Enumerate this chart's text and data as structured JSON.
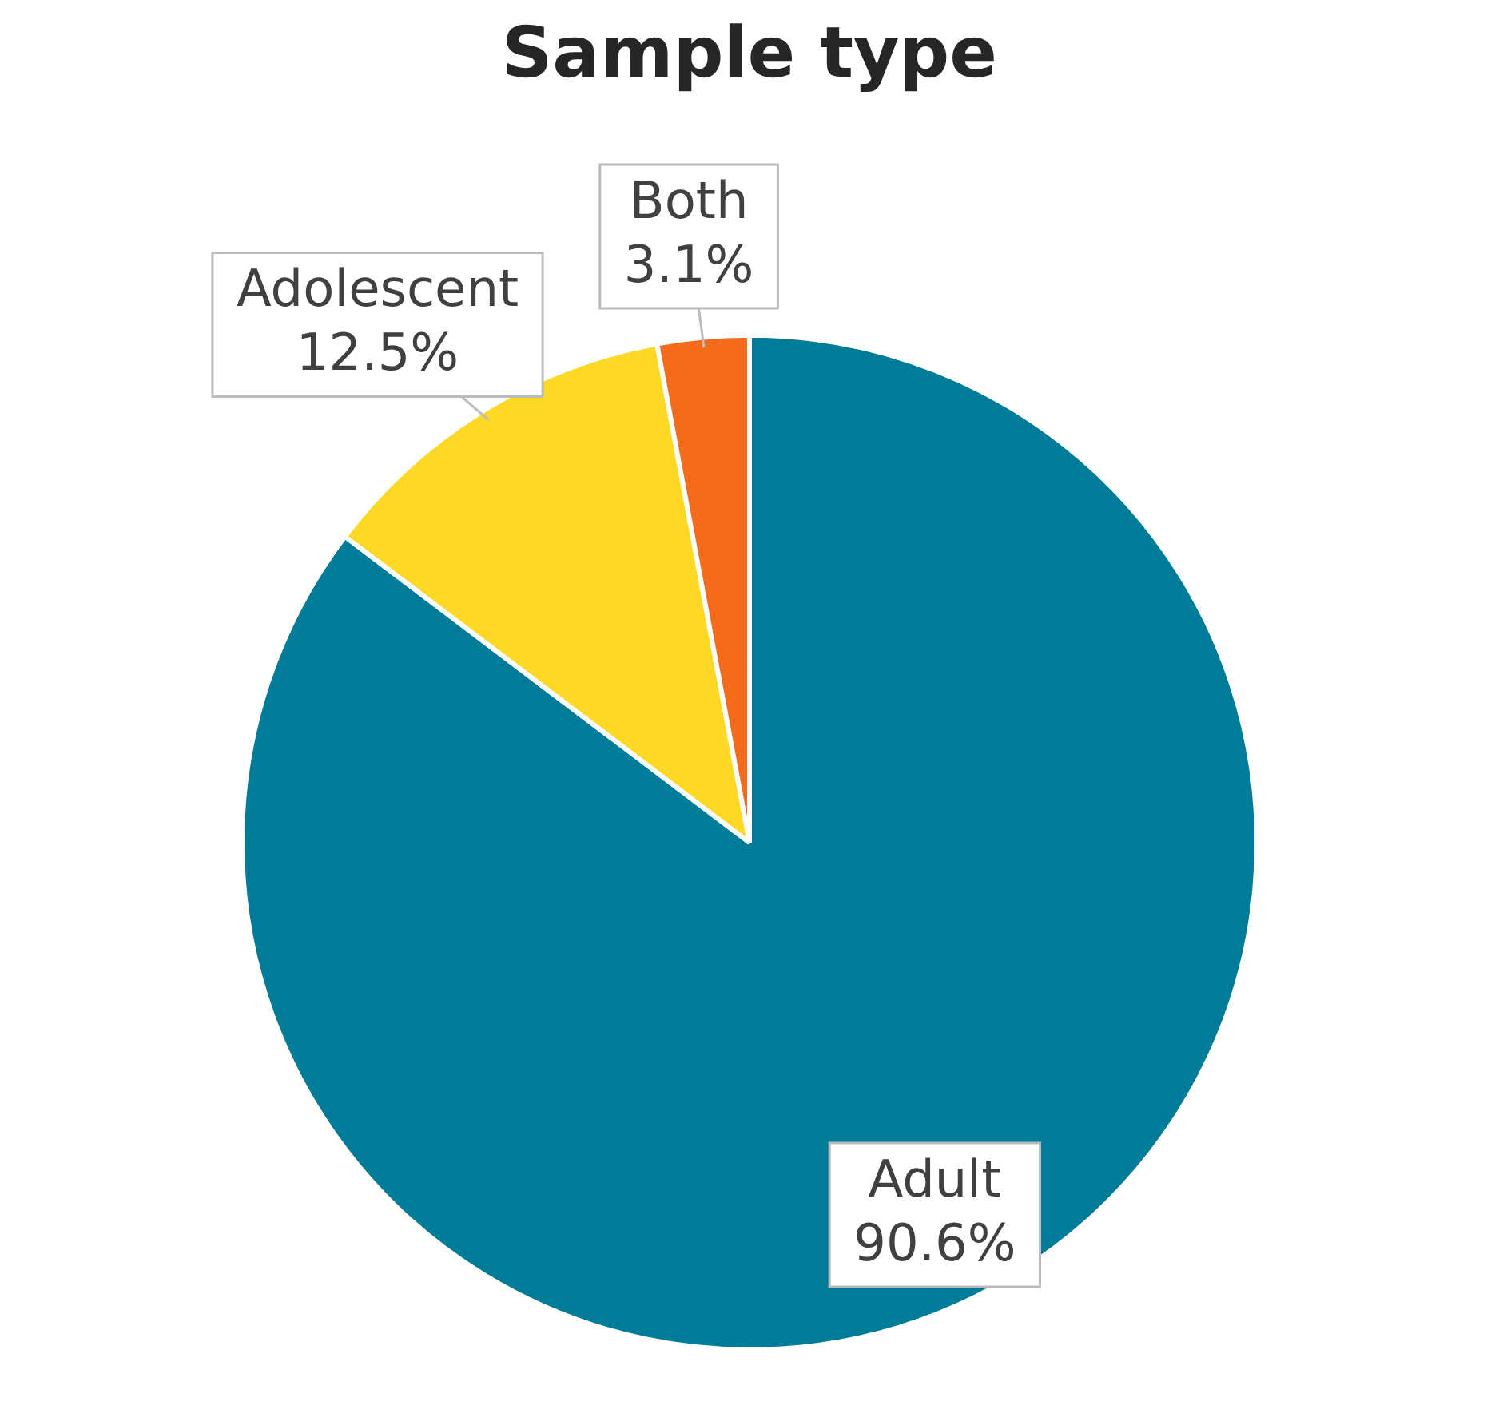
{
  "chart_data": {
    "type": "pie",
    "title": "Sample type",
    "categories": [
      "Adult",
      "Adolescent",
      "Both"
    ],
    "values": [
      90.6,
      12.5,
      3.1
    ],
    "value_labels": [
      "90.6%",
      "12.5%",
      "3.1%"
    ],
    "colors": [
      "#007c99",
      "#fdd824",
      "#f56b1c"
    ],
    "legend": false
  }
}
